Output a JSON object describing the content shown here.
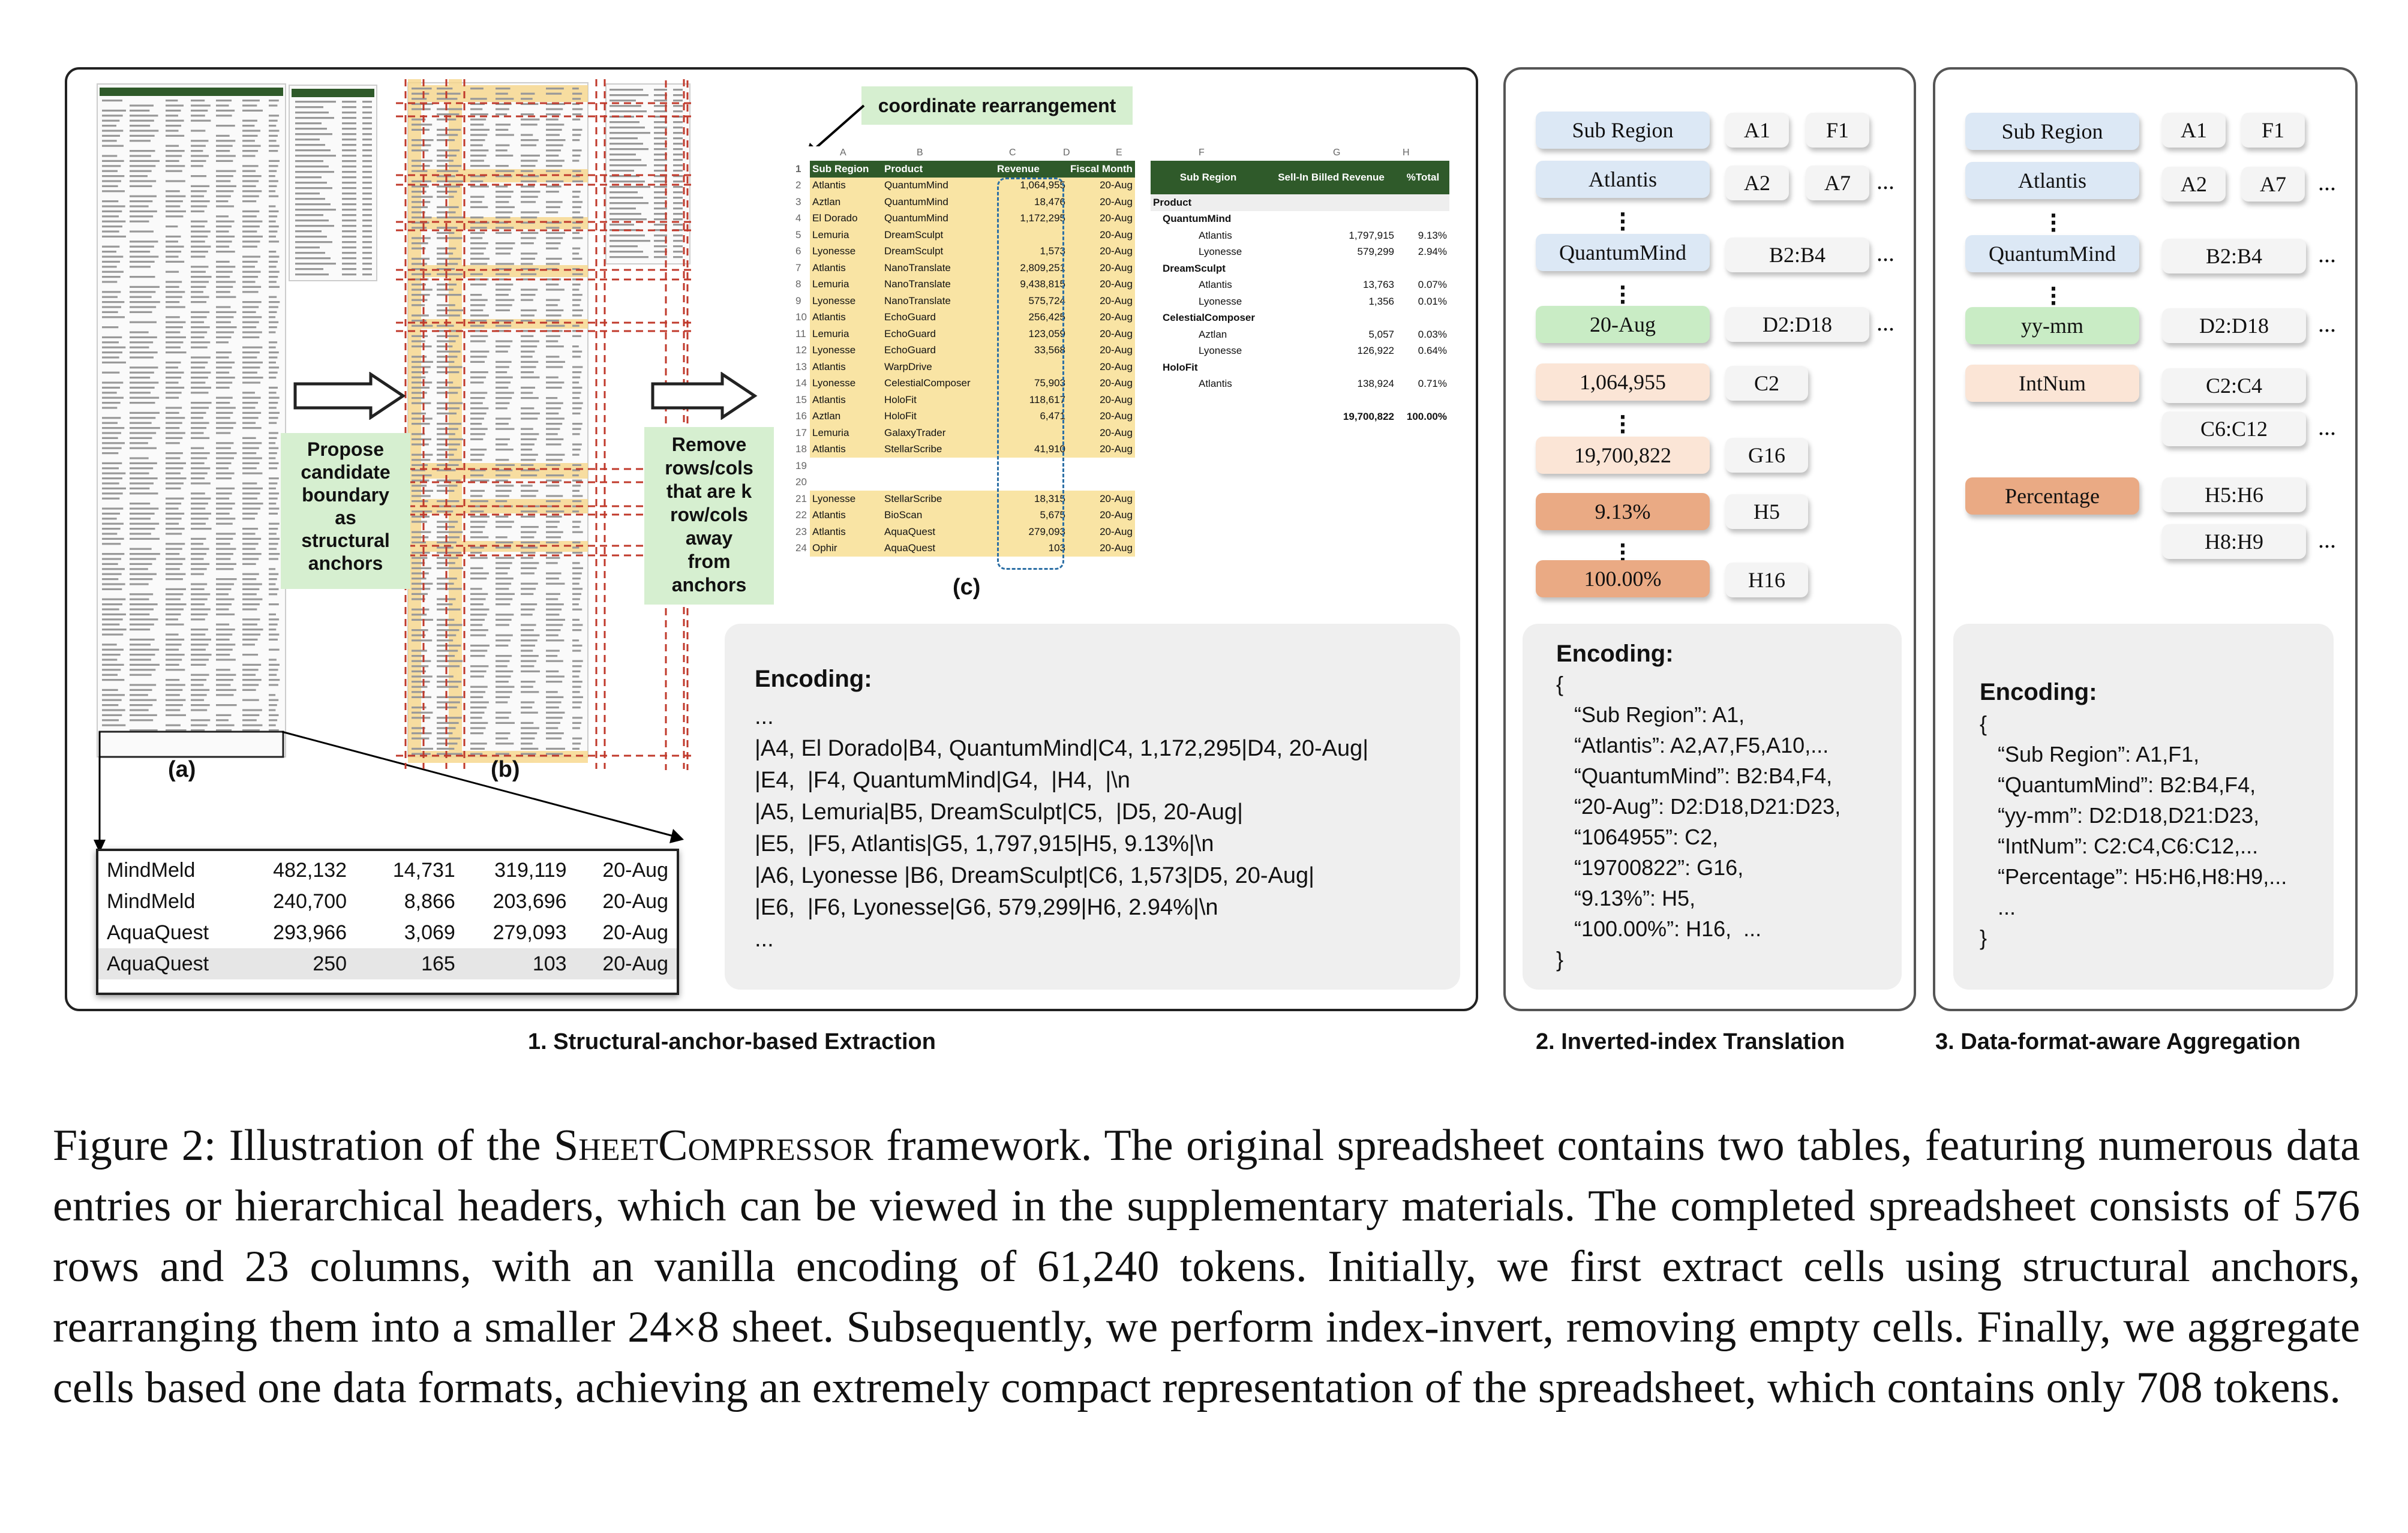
{
  "panel1": {
    "label": "1. Structural-anchor-based Extraction",
    "sub_a": "(a)",
    "sub_b": "(b)",
    "sub_c": "(c)",
    "note_coord": "coordinate rearrangement",
    "note_propose": [
      "Propose",
      "candidate",
      "boundary",
      "as",
      "structural",
      "anchors"
    ],
    "note_remove": [
      "Remove",
      "rows/cols",
      "that are k",
      "row/cols",
      "away",
      "from",
      "anchors"
    ],
    "zoom_rows": [
      [
        "MindMeld",
        "482,132",
        "14,731",
        "319,119",
        "20-Aug"
      ],
      [
        "MindMeld",
        "240,700",
        "8,866",
        "203,696",
        "20-Aug"
      ],
      [
        "AquaQuest",
        "293,966",
        "3,069",
        "279,093",
        "20-Aug"
      ],
      [
        "AquaQuest",
        "250",
        "165",
        "103",
        "20-Aug"
      ]
    ],
    "sheet_cols": [
      "A",
      "B",
      "C",
      "D",
      "E",
      "F",
      "G",
      "H"
    ],
    "sheet_headers": [
      "Sub Region",
      "Product",
      "Revenue",
      "Fiscal Month"
    ],
    "sheet_rows": [
      [
        "2",
        "Atlantis",
        "QuantumMind",
        "1,064,955",
        "20-Aug"
      ],
      [
        "3",
        "Aztlan",
        "QuantumMind",
        "18,476",
        "20-Aug"
      ],
      [
        "4",
        "El Dorado",
        "QuantumMind",
        "1,172,295",
        "20-Aug"
      ],
      [
        "5",
        "Lemuria",
        "DreamSculpt",
        "",
        "20-Aug"
      ],
      [
        "6",
        "Lyonesse",
        "DreamSculpt",
        "1,573",
        "20-Aug"
      ],
      [
        "7",
        "Atlantis",
        "NanoTranslate",
        "2,809,251",
        "20-Aug"
      ],
      [
        "8",
        "Lemuria",
        "NanoTranslate",
        "9,438,815",
        "20-Aug"
      ],
      [
        "9",
        "Lyonesse",
        "NanoTranslate",
        "575,724",
        "20-Aug"
      ],
      [
        "10",
        "Atlantis",
        "EchoGuard",
        "256,425",
        "20-Aug"
      ],
      [
        "11",
        "Lemuria",
        "EchoGuard",
        "123,059",
        "20-Aug"
      ],
      [
        "12",
        "Lyonesse",
        "EchoGuard",
        "33,568",
        "20-Aug"
      ],
      [
        "13",
        "Atlantis",
        "WarpDrive",
        "",
        "20-Aug"
      ],
      [
        "14",
        "Lyonesse",
        "CelestialComposer",
        "75,903",
        "20-Aug"
      ],
      [
        "15",
        "Atlantis",
        "HoloFit",
        "118,617",
        "20-Aug"
      ],
      [
        "16",
        "Aztlan",
        "HoloFit",
        "6,471",
        "20-Aug"
      ],
      [
        "17",
        "Lemuria",
        "GalaxyTrader",
        "",
        "20-Aug"
      ],
      [
        "18",
        "Atlantis",
        "StellarScribe",
        "41,910",
        "20-Aug"
      ],
      [
        "19",
        "",
        "",
        "",
        ""
      ],
      [
        "20",
        "",
        "",
        "",
        ""
      ],
      [
        "21",
        "Lyonesse",
        "StellarScribe",
        "18,315",
        "20-Aug"
      ],
      [
        "22",
        "Atlantis",
        "BioScan",
        "5,675",
        "20-Aug"
      ],
      [
        "23",
        "Atlantis",
        "AquaQuest",
        "279,093",
        "20-Aug"
      ],
      [
        "24",
        "Ophir",
        "AquaQuest",
        "103",
        "20-Aug"
      ]
    ],
    "pivot_headers": [
      "Sub Region",
      "Sell-In Billed Revenue",
      "%Total"
    ],
    "pivot_rows": [
      [
        "Product",
        "",
        "",
        "h"
      ],
      [
        "QuantumMind",
        "",
        "",
        "h2"
      ],
      [
        "Atlantis",
        "1,797,915",
        "9.13%",
        ""
      ],
      [
        "Lyonesse",
        "579,299",
        "2.94%",
        ""
      ],
      [
        "DreamSculpt",
        "",
        "",
        "h2"
      ],
      [
        "Atlantis",
        "13,763",
        "0.07%",
        ""
      ],
      [
        "Lyonesse",
        "1,356",
        "0.01%",
        ""
      ],
      [
        "CelestialComposer",
        "",
        "",
        "h2"
      ],
      [
        "Aztlan",
        "5,057",
        "0.03%",
        ""
      ],
      [
        "Lyonesse",
        "126,922",
        "0.64%",
        ""
      ],
      [
        "HoloFit",
        "",
        "",
        "h2"
      ],
      [
        "Atlantis",
        "138,924",
        "0.71%",
        ""
      ],
      [
        "",
        "",
        "",
        ""
      ],
      [
        "",
        "19,700,822",
        "100.00%",
        "t"
      ]
    ],
    "encoding_title": "Encoding:",
    "encoding_lines": [
      "...",
      "|A4, El Dorado|B4, QuantumMind|C4, 1,172,295|D4, 20-Aug|",
      "|E4,  |F4, QuantumMind|G4,  |H4,  |\\n",
      "|A5, Lemuria|B5, DreamSculpt|C5,  |D5, 20-Aug|",
      "|E5,  |F5, Atlantis|G5, 1,797,915|H5, 9.13%|\\n",
      "|A6, Lyonesse |B6, DreamSculpt|C6, 1,573|D5, 20-Aug|",
      "|E6,  |F6, Lyonesse|G6, 579,299|H6, 2.94%|\\n",
      "..."
    ]
  },
  "panel2": {
    "label": "2. Inverted-index Translation",
    "chips": {
      "sub_region": "Sub Region",
      "a1": "A1",
      "f1": "F1",
      "atlantis": "Atlantis",
      "a2": "A2",
      "a7": "A7",
      "quantummind": "QuantumMind",
      "b2b4": "B2:B4",
      "aug": "20-Aug",
      "d2d18": "D2:D18",
      "v1064955": "1,064,955",
      "c2": "C2",
      "v19700822": "19,700,822",
      "g16": "G16",
      "p913": "9.13%",
      "h5": "H5",
      "p100": "100.00%",
      "h16": "H16"
    },
    "ellipsis": "...",
    "encoding_title": "Encoding:",
    "encoding_lines": [
      "{",
      "   “Sub Region”: A1,",
      "   “Atlantis”: A2,A7,F5,A10,...",
      "   “QuantumMind”: B2:B4,F4,",
      "   “20-Aug”: D2:D18,D21:D23,",
      "   “1064955”: C2,",
      "   “19700822”: G16,",
      "   “9.13%”: H5,",
      "   “100.00%”: H16,  ...",
      "}"
    ]
  },
  "panel3": {
    "label": "3. Data-format-aware Aggregation",
    "chips": {
      "sub_region": "Sub Region",
      "a1": "A1",
      "f1": "F1",
      "atlantis": "Atlantis",
      "a2": "A2",
      "a7": "A7",
      "quantummind": "QuantumMind",
      "b2b4": "B2:B4",
      "yymm": "yy-mm",
      "d2d18": "D2:D18",
      "intnum": "IntNum",
      "c2c4": "C2:C4",
      "c6c12": "C6:C12",
      "percentage": "Percentage",
      "h5h6": "H5:H6",
      "h8h9": "H8:H9"
    },
    "ellipsis": "...",
    "encoding_title": "Encoding:",
    "encoding_lines": [
      "{",
      "   “Sub Region”: A1,F1,",
      "   “QuantumMind”: B2:B4,F4,",
      "   “yy-mm”: D2:D18,D21:D23,",
      "   “IntNum”: C2:C4,C6:C12,...",
      "   “Percentage”: H5:H6,H8:H9,...",
      "   ...",
      "}"
    ]
  },
  "caption": {
    "prefix": "Figure 2: Illustration of the ",
    "name": "SheetCompressor",
    "rest": " framework. The original spreadsheet contains two tables, featuring numerous data entries or hierarchical headers, which can be viewed in the supplementary materials. The completed spreadsheet consists of 576 rows and 23 columns, with an vanilla encoding of 61,240 tokens. Initially, we first extract cells using structural anchors, rearranging them into a smaller 24×8 sheet.  Subsequently, we perform index-invert, removing empty cells. Finally, we aggregate cells based one data formats, achieving an extremely compact representation of the spreadsheet, which contains only 708 tokens."
  }
}
